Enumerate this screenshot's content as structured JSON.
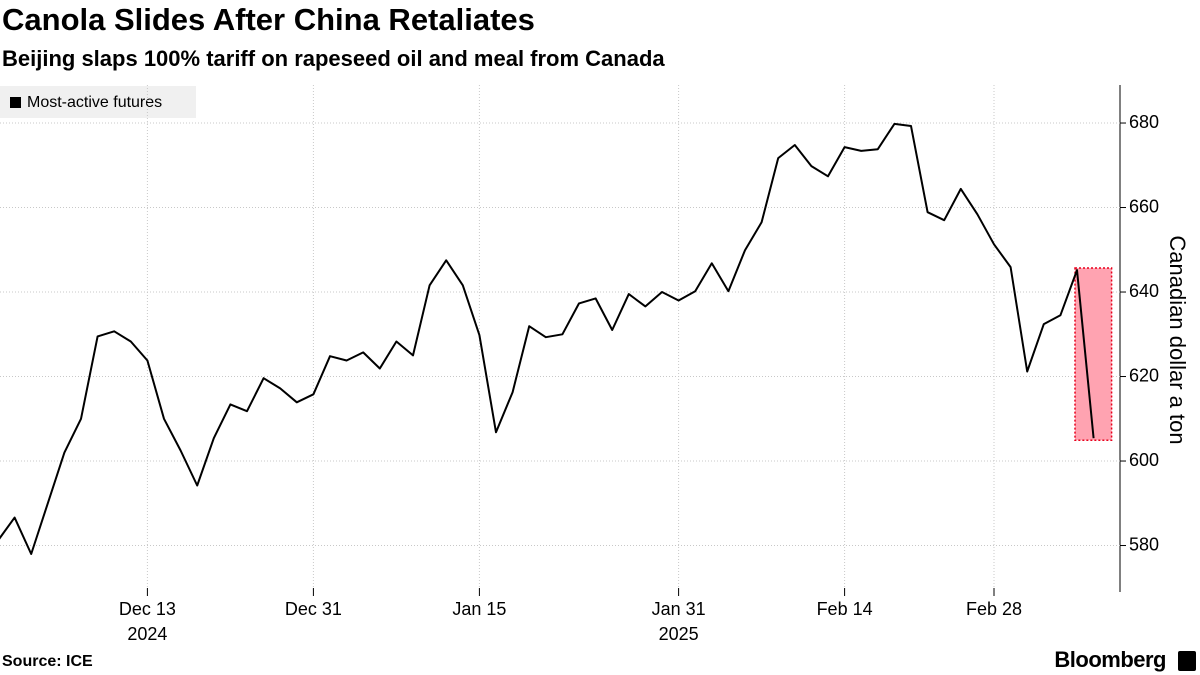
{
  "chart_data": {
    "type": "line",
    "title": "Canola Slides After China Retaliates",
    "subtitle": "Beijing slaps 100% tariff on rapeseed oil and meal from Canada",
    "y_axis_label": "Canadian dollar a ton",
    "source": "Source: ICE",
    "brand": "Bloomberg",
    "legend": "top-left",
    "grid": true,
    "x": [
      "2024-12-02",
      "2024-12-03",
      "2024-12-04",
      "2024-12-05",
      "2024-12-06",
      "2024-12-09",
      "2024-12-10",
      "2024-12-11",
      "2024-12-12",
      "2024-12-13",
      "2024-12-16",
      "2024-12-17",
      "2024-12-18",
      "2024-12-19",
      "2024-12-20",
      "2024-12-23",
      "2024-12-24",
      "2024-12-27",
      "2024-12-30",
      "2024-12-31",
      "2025-01-02",
      "2025-01-03",
      "2025-01-06",
      "2025-01-07",
      "2025-01-08",
      "2025-01-09",
      "2025-01-10",
      "2025-01-13",
      "2025-01-14",
      "2025-01-15",
      "2025-01-16",
      "2025-01-17",
      "2025-01-20",
      "2025-01-21",
      "2025-01-22",
      "2025-01-23",
      "2025-01-24",
      "2025-01-27",
      "2025-01-28",
      "2025-01-29",
      "2025-01-30",
      "2025-01-31",
      "2025-02-03",
      "2025-02-04",
      "2025-02-05",
      "2025-02-06",
      "2025-02-07",
      "2025-02-10",
      "2025-02-11",
      "2025-02-12",
      "2025-02-13",
      "2025-02-14",
      "2025-02-18",
      "2025-02-19",
      "2025-02-20",
      "2025-02-21",
      "2025-02-24",
      "2025-02-25",
      "2025-02-26",
      "2025-02-27",
      "2025-02-28",
      "2025-03-03",
      "2025-03-04",
      "2025-03-05",
      "2025-03-06",
      "2025-03-07",
      "2025-03-10"
    ],
    "series": [
      {
        "name": "Most-active futures",
        "color": "#000000",
        "values": [
          581.2,
          586.6,
          578,
          590,
          602,
          610,
          629.5,
          630.7,
          628.3,
          623.8,
          610,
          602.5,
          594.2,
          605.4,
          613.4,
          611.8,
          619.6,
          617.2,
          613.9,
          615.8,
          624.8,
          623.8,
          625.7,
          621.9,
          628.3,
          625,
          641.6,
          647.5,
          641.6,
          629.8,
          606.8,
          616.3,
          631.9,
          629.3,
          630,
          637.3,
          638.5,
          631,
          639.5,
          636.6,
          640,
          638,
          640.2,
          646.8,
          640.2,
          649.9,
          656.5,
          671.7,
          674.8,
          669.8,
          667.4,
          674.3,
          673.4,
          673.8,
          679.8,
          679.3,
          658.9,
          657,
          664.4,
          658.4,
          651.3,
          645.9,
          621.2,
          632.4,
          634.5,
          645.2,
          605.4
        ]
      }
    ],
    "highlight_color": "#ffa3b1",
    "ylim": [
      569,
      689
    ],
    "yticks": [
      580,
      600,
      620,
      640,
      660,
      680
    ],
    "xticks": [
      {
        "value": "2024-12-13",
        "label": "Dec 13"
      },
      {
        "value": "2024-12-31",
        "label": "Dec 31"
      },
      {
        "value": "2025-01-15",
        "label": "Jan 15"
      },
      {
        "value": "2025-01-31",
        "label": "Jan 31"
      },
      {
        "value": "2025-02-14",
        "label": "Feb 14"
      },
      {
        "value": "2025-02-28",
        "label": "Feb 28"
      }
    ],
    "year_labels": [
      {
        "value": "2024-12-13",
        "label": "2024"
      },
      {
        "value": "2025-01-31",
        "label": "2025"
      }
    ]
  }
}
